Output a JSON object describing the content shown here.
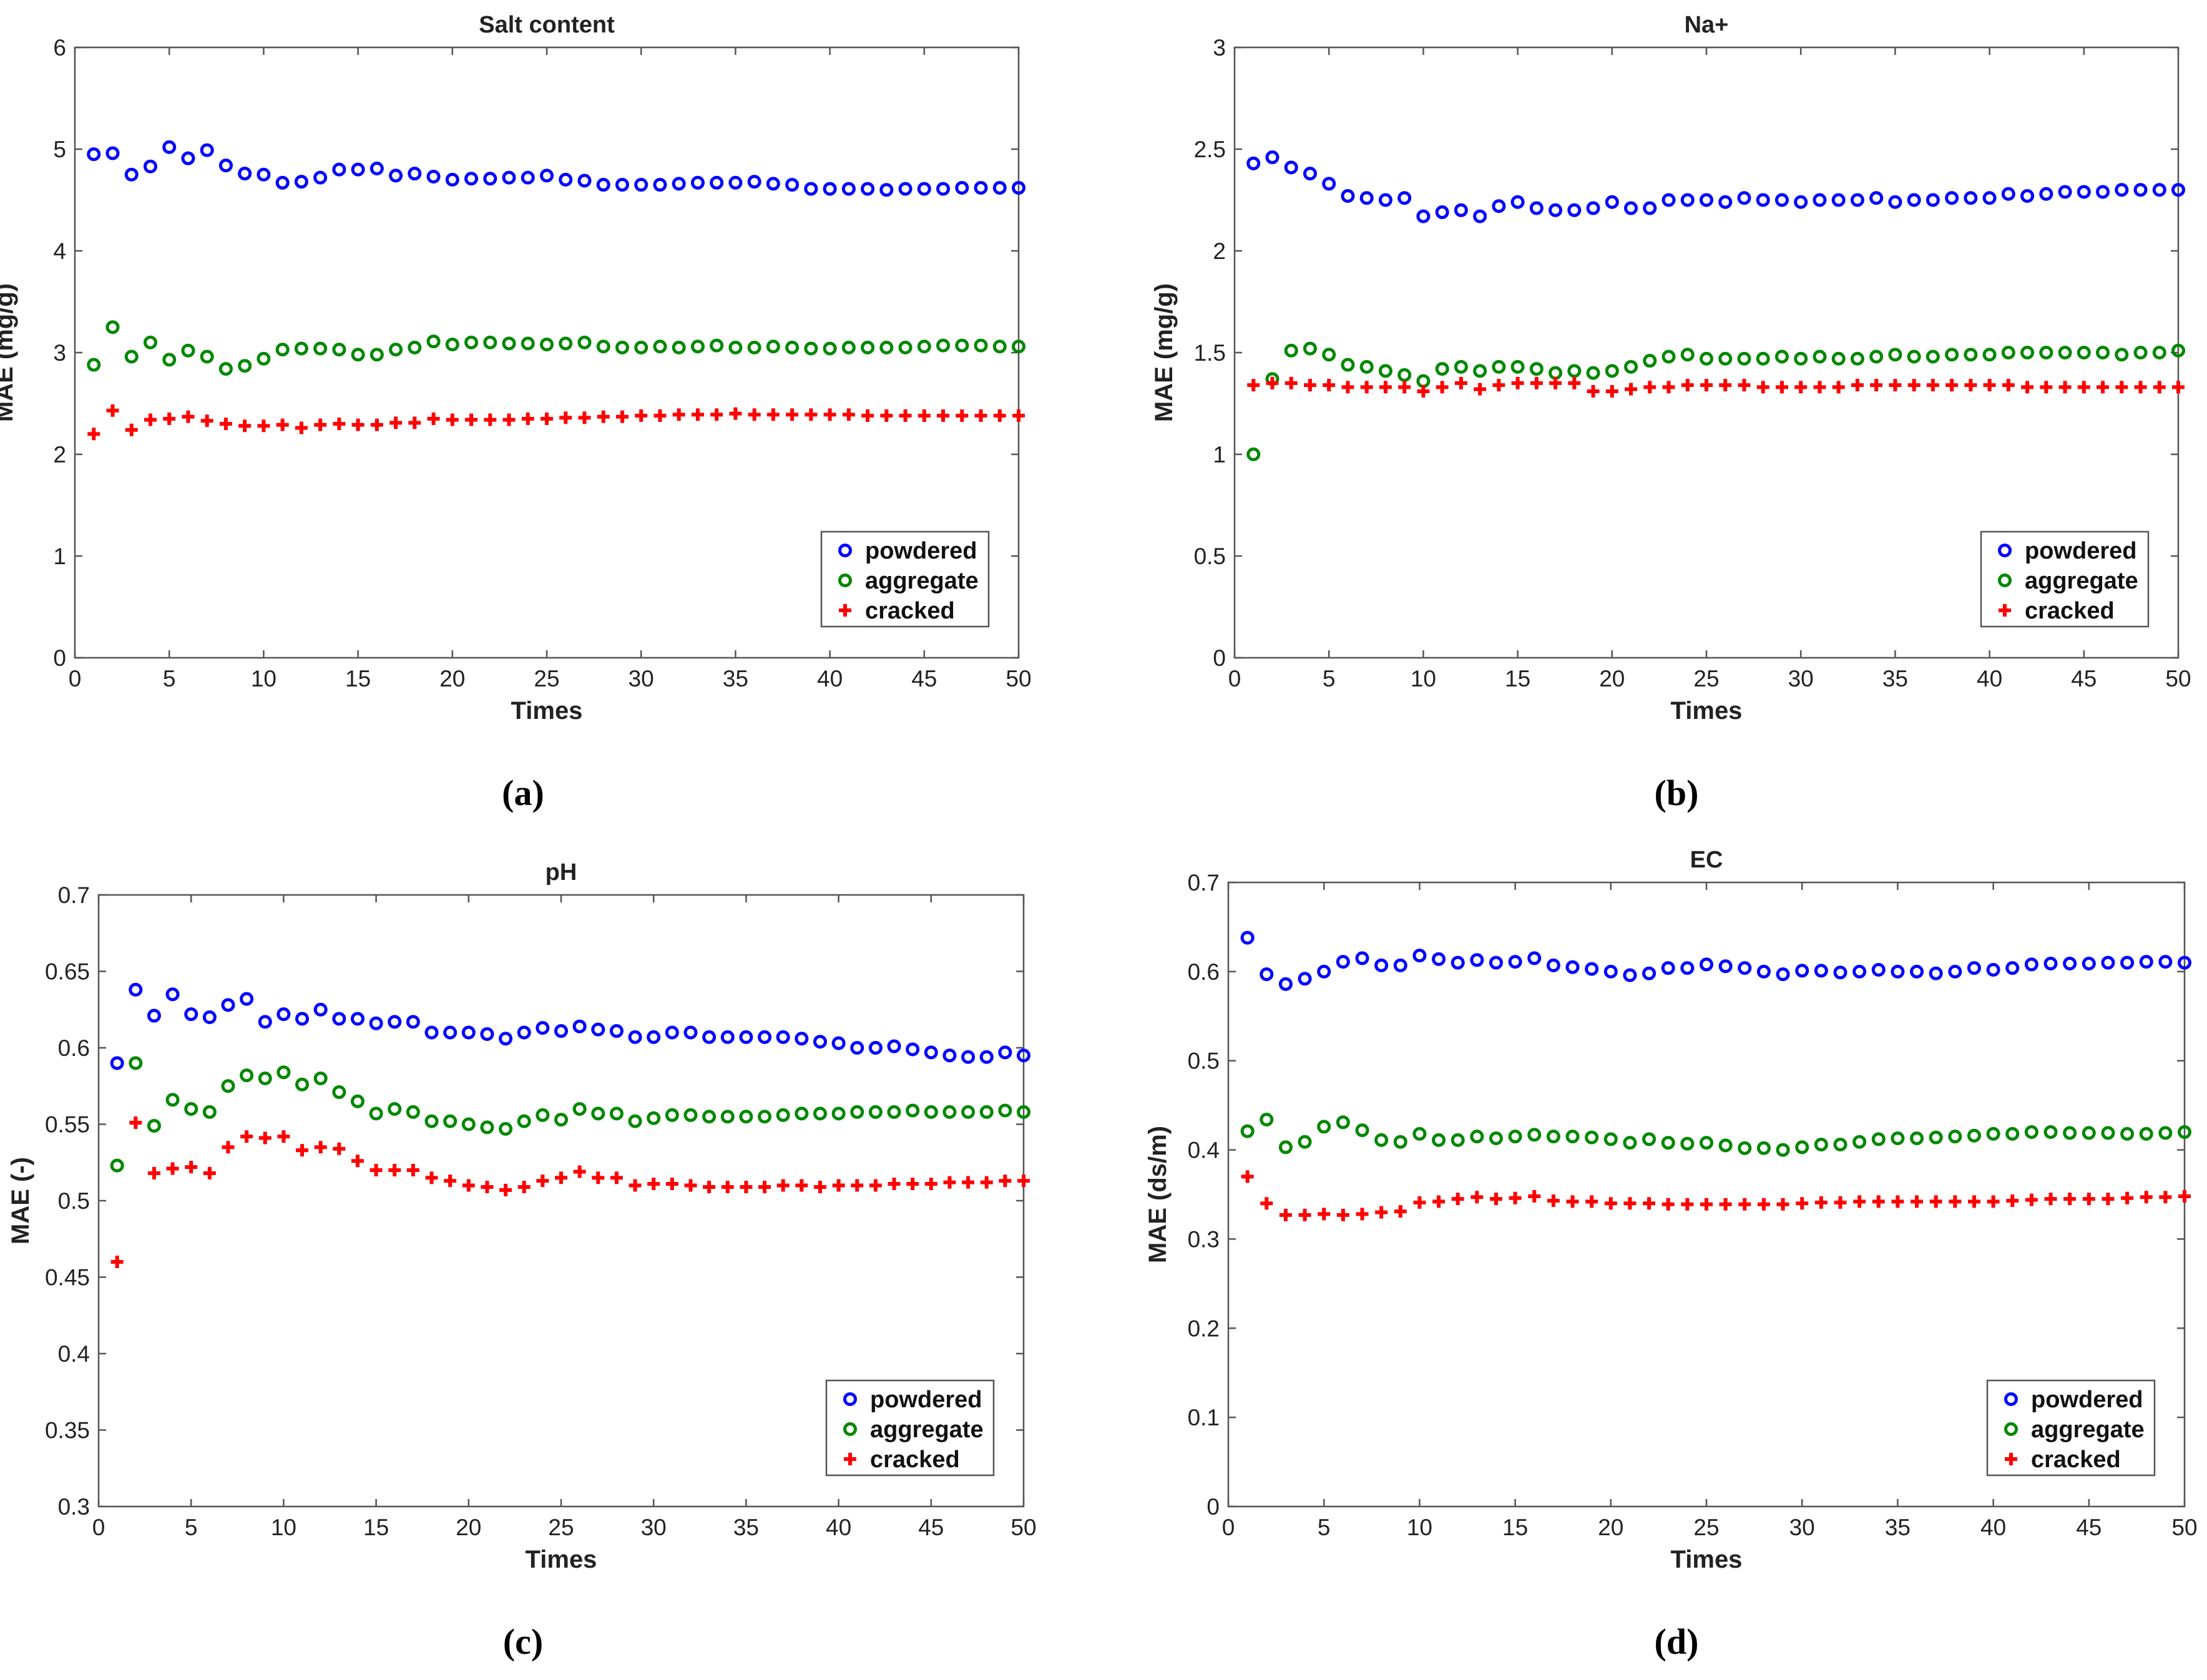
{
  "figure": {
    "panel_labels": [
      "(a)",
      "(b)",
      "(c)",
      "(d)"
    ]
  },
  "chart_data": [
    {
      "type": "scatter",
      "title": "Salt content",
      "xlabel": "Times",
      "ylabel": "MAE (mg/g)",
      "xlim": [
        0,
        50
      ],
      "ylim": [
        0,
        6
      ],
      "xticks": [
        "0",
        "5",
        "10",
        "15",
        "20",
        "25",
        "30",
        "35",
        "40",
        "45",
        "50"
      ],
      "yticks": [
        "0",
        "1",
        "2",
        "3",
        "4",
        "5",
        "6"
      ],
      "grid": false,
      "legend_position": "bottom-right",
      "x": [
        1,
        2,
        3,
        4,
        5,
        6,
        7,
        8,
        9,
        10,
        11,
        12,
        13,
        14,
        15,
        16,
        17,
        18,
        19,
        20,
        21,
        22,
        23,
        24,
        25,
        26,
        27,
        28,
        29,
        30,
        31,
        32,
        33,
        34,
        35,
        36,
        37,
        38,
        39,
        40,
        41,
        42,
        43,
        44,
        45,
        46,
        47,
        48,
        49,
        50
      ],
      "series": [
        {
          "name": "powdered",
          "color": "#0000ff",
          "marker": "circle",
          "values": [
            4.95,
            4.96,
            4.75,
            4.83,
            5.02,
            4.91,
            4.99,
            4.84,
            4.76,
            4.75,
            4.67,
            4.68,
            4.72,
            4.8,
            4.8,
            4.81,
            4.74,
            4.76,
            4.73,
            4.7,
            4.71,
            4.71,
            4.72,
            4.72,
            4.74,
            4.7,
            4.69,
            4.65,
            4.65,
            4.65,
            4.65,
            4.66,
            4.67,
            4.67,
            4.67,
            4.68,
            4.66,
            4.65,
            4.61,
            4.61,
            4.61,
            4.61,
            4.6,
            4.61,
            4.61,
            4.61,
            4.62,
            4.62,
            4.62,
            4.62
          ]
        },
        {
          "name": "aggregate",
          "color": "#008800",
          "marker": "circle",
          "values": [
            2.88,
            3.25,
            2.96,
            3.1,
            2.93,
            3.02,
            2.96,
            2.84,
            2.87,
            2.94,
            3.03,
            3.04,
            3.04,
            3.03,
            2.98,
            2.98,
            3.03,
            3.05,
            3.11,
            3.08,
            3.1,
            3.1,
            3.09,
            3.09,
            3.08,
            3.09,
            3.1,
            3.06,
            3.05,
            3.05,
            3.06,
            3.05,
            3.06,
            3.07,
            3.05,
            3.05,
            3.06,
            3.05,
            3.04,
            3.04,
            3.05,
            3.05,
            3.05,
            3.05,
            3.06,
            3.07,
            3.07,
            3.07,
            3.06,
            3.06
          ]
        },
        {
          "name": "cracked",
          "color": "#ff0000",
          "marker": "plus",
          "values": [
            2.2,
            2.43,
            2.24,
            2.34,
            2.35,
            2.37,
            2.33,
            2.3,
            2.28,
            2.28,
            2.29,
            2.26,
            2.29,
            2.3,
            2.29,
            2.29,
            2.31,
            2.31,
            2.35,
            2.34,
            2.34,
            2.34,
            2.34,
            2.35,
            2.35,
            2.36,
            2.36,
            2.37,
            2.37,
            2.38,
            2.38,
            2.39,
            2.39,
            2.39,
            2.4,
            2.39,
            2.39,
            2.39,
            2.39,
            2.39,
            2.39,
            2.38,
            2.38,
            2.38,
            2.38,
            2.38,
            2.38,
            2.38,
            2.38,
            2.38
          ]
        }
      ]
    },
    {
      "type": "scatter",
      "title": "Na+",
      "xlabel": "Times",
      "ylabel": "MAE (mg/g)",
      "xlim": [
        0,
        50
      ],
      "ylim": [
        0,
        3
      ],
      "xticks": [
        "0",
        "5",
        "10",
        "15",
        "20",
        "25",
        "30",
        "35",
        "40",
        "45",
        "50"
      ],
      "yticks": [
        "0",
        "0.5",
        "1",
        "1.5",
        "2",
        "2.5",
        "3"
      ],
      "grid": false,
      "legend_position": "bottom-right",
      "x": [
        1,
        2,
        3,
        4,
        5,
        6,
        7,
        8,
        9,
        10,
        11,
        12,
        13,
        14,
        15,
        16,
        17,
        18,
        19,
        20,
        21,
        22,
        23,
        24,
        25,
        26,
        27,
        28,
        29,
        30,
        31,
        32,
        33,
        34,
        35,
        36,
        37,
        38,
        39,
        40,
        41,
        42,
        43,
        44,
        45,
        46,
        47,
        48,
        49,
        50
      ],
      "series": [
        {
          "name": "powdered",
          "color": "#0000ff",
          "marker": "circle",
          "values": [
            2.43,
            2.46,
            2.41,
            2.38,
            2.33,
            2.27,
            2.26,
            2.25,
            2.26,
            2.17,
            2.19,
            2.2,
            2.17,
            2.22,
            2.24,
            2.21,
            2.2,
            2.2,
            2.21,
            2.24,
            2.21,
            2.21,
            2.25,
            2.25,
            2.25,
            2.24,
            2.26,
            2.25,
            2.25,
            2.24,
            2.25,
            2.25,
            2.25,
            2.26,
            2.24,
            2.25,
            2.25,
            2.26,
            2.26,
            2.26,
            2.28,
            2.27,
            2.28,
            2.29,
            2.29,
            2.29,
            2.3,
            2.3,
            2.3,
            2.3
          ]
        },
        {
          "name": "aggregate",
          "color": "#008800",
          "marker": "circle",
          "values": [
            1.0,
            1.37,
            1.51,
            1.52,
            1.49,
            1.44,
            1.43,
            1.41,
            1.39,
            1.36,
            1.42,
            1.43,
            1.41,
            1.43,
            1.43,
            1.42,
            1.4,
            1.41,
            1.4,
            1.41,
            1.43,
            1.46,
            1.48,
            1.49,
            1.47,
            1.47,
            1.47,
            1.47,
            1.48,
            1.47,
            1.48,
            1.47,
            1.47,
            1.48,
            1.49,
            1.48,
            1.48,
            1.49,
            1.49,
            1.49,
            1.5,
            1.5,
            1.5,
            1.5,
            1.5,
            1.5,
            1.49,
            1.5,
            1.5,
            1.51
          ]
        },
        {
          "name": "cracked",
          "color": "#ff0000",
          "marker": "plus",
          "values": [
            1.34,
            1.35,
            1.35,
            1.34,
            1.34,
            1.33,
            1.33,
            1.33,
            1.33,
            1.31,
            1.33,
            1.35,
            1.32,
            1.34,
            1.35,
            1.35,
            1.35,
            1.35,
            1.31,
            1.31,
            1.32,
            1.33,
            1.33,
            1.34,
            1.34,
            1.34,
            1.34,
            1.33,
            1.33,
            1.33,
            1.33,
            1.33,
            1.34,
            1.34,
            1.34,
            1.34,
            1.34,
            1.34,
            1.34,
            1.34,
            1.34,
            1.33,
            1.33,
            1.33,
            1.33,
            1.33,
            1.33,
            1.33,
            1.33,
            1.33
          ]
        }
      ]
    },
    {
      "type": "scatter",
      "title": "pH",
      "xlabel": "Times",
      "ylabel": "MAE (-)",
      "xlim": [
        0,
        50
      ],
      "ylim": [
        0.3,
        0.7
      ],
      "xticks": [
        "0",
        "5",
        "10",
        "15",
        "20",
        "25",
        "30",
        "35",
        "40",
        "45",
        "50"
      ],
      "yticks": [
        "0.3",
        "0.35",
        "0.4",
        "0.45",
        "0.5",
        "0.55",
        "0.6",
        "0.65",
        "0.7"
      ],
      "grid": false,
      "legend_position": "bottom-right",
      "x": [
        1,
        2,
        3,
        4,
        5,
        6,
        7,
        8,
        9,
        10,
        11,
        12,
        13,
        14,
        15,
        16,
        17,
        18,
        19,
        20,
        21,
        22,
        23,
        24,
        25,
        26,
        27,
        28,
        29,
        30,
        31,
        32,
        33,
        34,
        35,
        36,
        37,
        38,
        39,
        40,
        41,
        42,
        43,
        44,
        45,
        46,
        47,
        48,
        49,
        50
      ],
      "series": [
        {
          "name": "powdered",
          "color": "#0000ff",
          "marker": "circle",
          "values": [
            0.59,
            0.638,
            0.621,
            0.635,
            0.622,
            0.62,
            0.628,
            0.632,
            0.617,
            0.622,
            0.619,
            0.625,
            0.619,
            0.619,
            0.616,
            0.617,
            0.617,
            0.61,
            0.61,
            0.61,
            0.609,
            0.606,
            0.61,
            0.613,
            0.611,
            0.614,
            0.612,
            0.611,
            0.607,
            0.607,
            0.61,
            0.61,
            0.607,
            0.607,
            0.607,
            0.607,
            0.607,
            0.606,
            0.604,
            0.603,
            0.6,
            0.6,
            0.601,
            0.599,
            0.597,
            0.595,
            0.594,
            0.594,
            0.597,
            0.595
          ]
        },
        {
          "name": "aggregate",
          "color": "#008800",
          "marker": "circle",
          "values": [
            0.523,
            0.59,
            0.549,
            0.566,
            0.56,
            0.558,
            0.575,
            0.582,
            0.58,
            0.584,
            0.576,
            0.58,
            0.571,
            0.565,
            0.557,
            0.56,
            0.558,
            0.552,
            0.552,
            0.55,
            0.548,
            0.547,
            0.552,
            0.556,
            0.553,
            0.56,
            0.557,
            0.557,
            0.552,
            0.554,
            0.556,
            0.556,
            0.555,
            0.555,
            0.555,
            0.555,
            0.556,
            0.557,
            0.557,
            0.557,
            0.558,
            0.558,
            0.558,
            0.559,
            0.558,
            0.558,
            0.558,
            0.558,
            0.559,
            0.558
          ]
        },
        {
          "name": "cracked",
          "color": "#ff0000",
          "marker": "plus",
          "values": [
            0.46,
            0.551,
            0.518,
            0.521,
            0.522,
            0.518,
            0.535,
            0.542,
            0.541,
            0.542,
            0.533,
            0.535,
            0.534,
            0.526,
            0.52,
            0.52,
            0.52,
            0.515,
            0.513,
            0.51,
            0.509,
            0.507,
            0.509,
            0.513,
            0.515,
            0.519,
            0.515,
            0.515,
            0.51,
            0.511,
            0.511,
            0.51,
            0.509,
            0.509,
            0.509,
            0.509,
            0.51,
            0.51,
            0.509,
            0.51,
            0.51,
            0.51,
            0.511,
            0.511,
            0.511,
            0.512,
            0.512,
            0.512,
            0.513,
            0.513
          ]
        }
      ]
    },
    {
      "type": "scatter",
      "title": "EC",
      "xlabel": "Times",
      "ylabel": "MAE (ds/m)",
      "xlim": [
        0,
        50
      ],
      "ylim": [
        0,
        0.7
      ],
      "xticks": [
        "0",
        "5",
        "10",
        "15",
        "20",
        "25",
        "30",
        "35",
        "40",
        "45",
        "50"
      ],
      "yticks": [
        "0",
        "0.1",
        "0.2",
        "0.3",
        "0.4",
        "0.5",
        "0.6",
        "0.7"
      ],
      "grid": false,
      "legend_position": "bottom-right",
      "x": [
        1,
        2,
        3,
        4,
        5,
        6,
        7,
        8,
        9,
        10,
        11,
        12,
        13,
        14,
        15,
        16,
        17,
        18,
        19,
        20,
        21,
        22,
        23,
        24,
        25,
        26,
        27,
        28,
        29,
        30,
        31,
        32,
        33,
        34,
        35,
        36,
        37,
        38,
        39,
        40,
        41,
        42,
        43,
        44,
        45,
        46,
        47,
        48,
        49,
        50
      ],
      "series": [
        {
          "name": "powdered",
          "color": "#0000ff",
          "marker": "circle",
          "values": [
            0.638,
            0.597,
            0.586,
            0.592,
            0.6,
            0.611,
            0.615,
            0.607,
            0.607,
            0.618,
            0.614,
            0.61,
            0.613,
            0.61,
            0.611,
            0.615,
            0.607,
            0.605,
            0.603,
            0.6,
            0.596,
            0.598,
            0.604,
            0.604,
            0.608,
            0.606,
            0.604,
            0.6,
            0.597,
            0.601,
            0.601,
            0.599,
            0.6,
            0.602,
            0.6,
            0.6,
            0.598,
            0.6,
            0.604,
            0.602,
            0.604,
            0.608,
            0.609,
            0.609,
            0.609,
            0.61,
            0.61,
            0.611,
            0.611,
            0.61
          ]
        },
        {
          "name": "aggregate",
          "color": "#008800",
          "marker": "circle",
          "values": [
            0.421,
            0.434,
            0.403,
            0.409,
            0.426,
            0.431,
            0.422,
            0.411,
            0.409,
            0.418,
            0.411,
            0.411,
            0.415,
            0.413,
            0.415,
            0.417,
            0.415,
            0.415,
            0.414,
            0.412,
            0.408,
            0.412,
            0.408,
            0.407,
            0.408,
            0.405,
            0.402,
            0.402,
            0.4,
            0.403,
            0.406,
            0.406,
            0.409,
            0.412,
            0.413,
            0.413,
            0.414,
            0.415,
            0.416,
            0.418,
            0.418,
            0.42,
            0.42,
            0.419,
            0.419,
            0.419,
            0.418,
            0.418,
            0.419,
            0.42
          ]
        },
        {
          "name": "cracked",
          "color": "#ff0000",
          "marker": "plus",
          "values": [
            0.37,
            0.34,
            0.327,
            0.327,
            0.328,
            0.327,
            0.328,
            0.33,
            0.331,
            0.341,
            0.342,
            0.345,
            0.347,
            0.345,
            0.346,
            0.348,
            0.343,
            0.342,
            0.342,
            0.34,
            0.34,
            0.34,
            0.339,
            0.339,
            0.339,
            0.339,
            0.339,
            0.339,
            0.339,
            0.34,
            0.341,
            0.341,
            0.342,
            0.342,
            0.342,
            0.342,
            0.342,
            0.342,
            0.342,
            0.342,
            0.343,
            0.344,
            0.345,
            0.345,
            0.345,
            0.345,
            0.346,
            0.347,
            0.347,
            0.348
          ]
        }
      ]
    }
  ]
}
